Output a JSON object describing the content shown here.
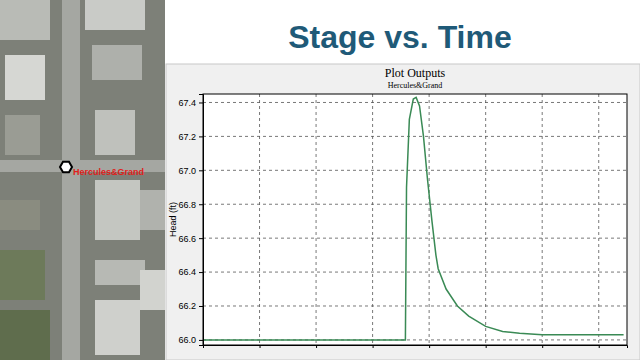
{
  "slide": {
    "title": "Stage vs. Time",
    "map_label": "Hercules&Grand"
  },
  "chart_data": {
    "type": "line",
    "title": "Plot Outputs",
    "subtitle": "Hercules&Grand",
    "y_label": "Head (ft)",
    "x": [
      0,
      3.58,
      3.6,
      3.65,
      3.72,
      3.77,
      3.83,
      3.9,
      3.97,
      4.05,
      4.12,
      4.16,
      4.3,
      4.5,
      4.7,
      5.0,
      5.3,
      5.6,
      6.0,
      6.5,
      7.0,
      7.44
    ],
    "values": [
      66.0,
      66.0,
      66.9,
      67.3,
      67.42,
      67.43,
      67.38,
      67.2,
      66.95,
      66.7,
      66.5,
      66.42,
      66.3,
      66.2,
      66.14,
      66.08,
      66.05,
      66.04,
      66.03,
      66.03,
      66.03,
      66.03
    ],
    "color": "#3a8a55",
    "xlim": [
      0,
      7.5
    ],
    "xticks": [
      1,
      2,
      3,
      4,
      5,
      6,
      7
    ],
    "ylim": [
      65.97,
      67.45
    ],
    "yticks": [
      {
        "value": 66,
        "label": "66.0"
      },
      66.2,
      66.4,
      66.6,
      66.8,
      {
        "value": 67,
        "label": "67.0"
      },
      67.2,
      67.4
    ],
    "grid": true,
    "tick_labels": "y"
  }
}
